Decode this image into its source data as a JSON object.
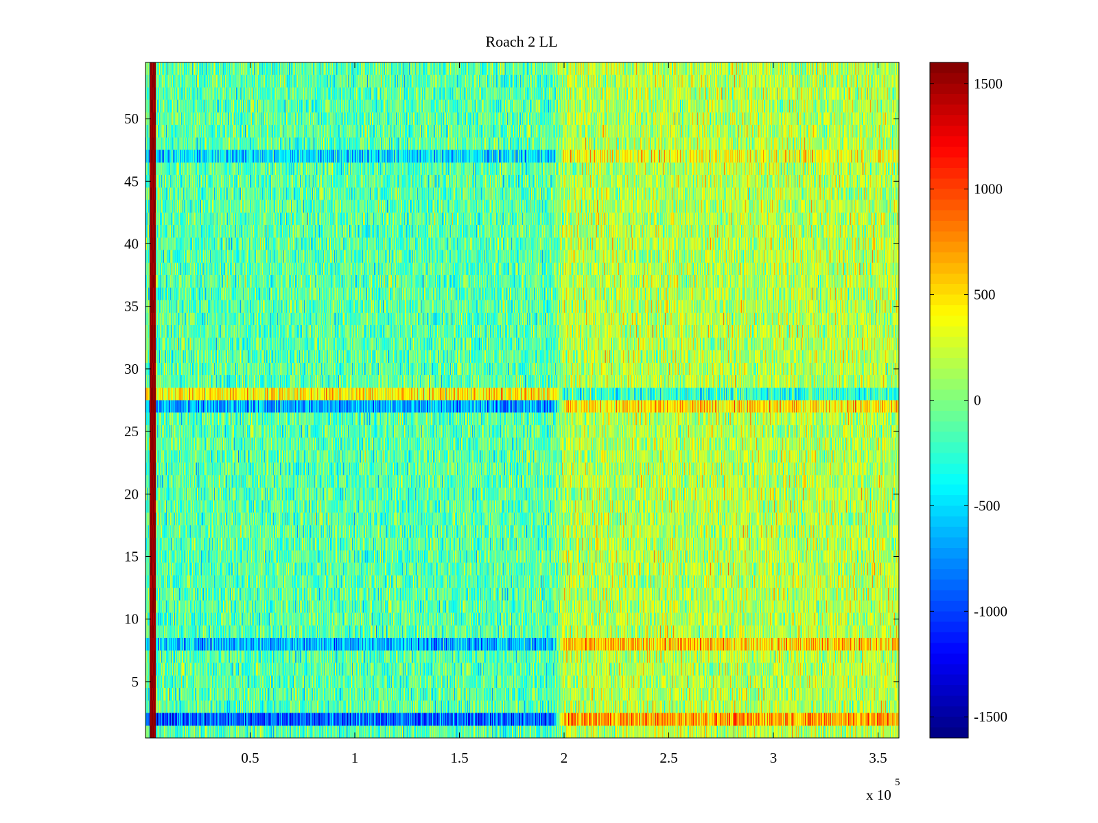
{
  "chart_data": {
    "type": "heatmap",
    "title": "Roach 2 LL",
    "xlabel": "",
    "ylabel": "",
    "x_range": [
      0,
      360000
    ],
    "y_range": [
      0.5,
      54.5
    ],
    "rows": 54,
    "x_ticks": [
      50000,
      100000,
      150000,
      200000,
      250000,
      300000,
      350000
    ],
    "x_tick_labels": [
      "0.5",
      "1",
      "1.5",
      "2",
      "2.5",
      "3",
      "3.5"
    ],
    "x_exponent_label": "x 10",
    "x_exponent_power": "5",
    "y_ticks": [
      5,
      10,
      15,
      20,
      25,
      30,
      35,
      40,
      45,
      50
    ],
    "y_tick_labels": [
      "5",
      "10",
      "15",
      "20",
      "25",
      "30",
      "35",
      "40",
      "45",
      "50"
    ],
    "colormap": "jet",
    "color_range": [
      -1600,
      1600
    ],
    "colorbar_ticks": [
      1500,
      1000,
      500,
      0,
      -500,
      -1000,
      -1500
    ],
    "colorbar_tick_labels": [
      "1500",
      "1000",
      "500",
      "0",
      "-500",
      "-1000",
      "-1500"
    ],
    "features": {
      "saturated_column_x": [
        2000,
        5000
      ],
      "saturated_column_value": 1550,
      "early_period_mean": -120,
      "late_period_mean": 170,
      "transition_x": [
        195000,
        200000
      ],
      "notable_rows": [
        {
          "row": 2,
          "early": -900,
          "late": 700
        },
        {
          "row": 8,
          "early": -600,
          "late": 550
        },
        {
          "row": 27,
          "early": -650,
          "late": 480
        },
        {
          "row": 28,
          "early": 450,
          "late": -250
        },
        {
          "row": 47,
          "early": -500,
          "late": 350
        }
      ]
    }
  }
}
